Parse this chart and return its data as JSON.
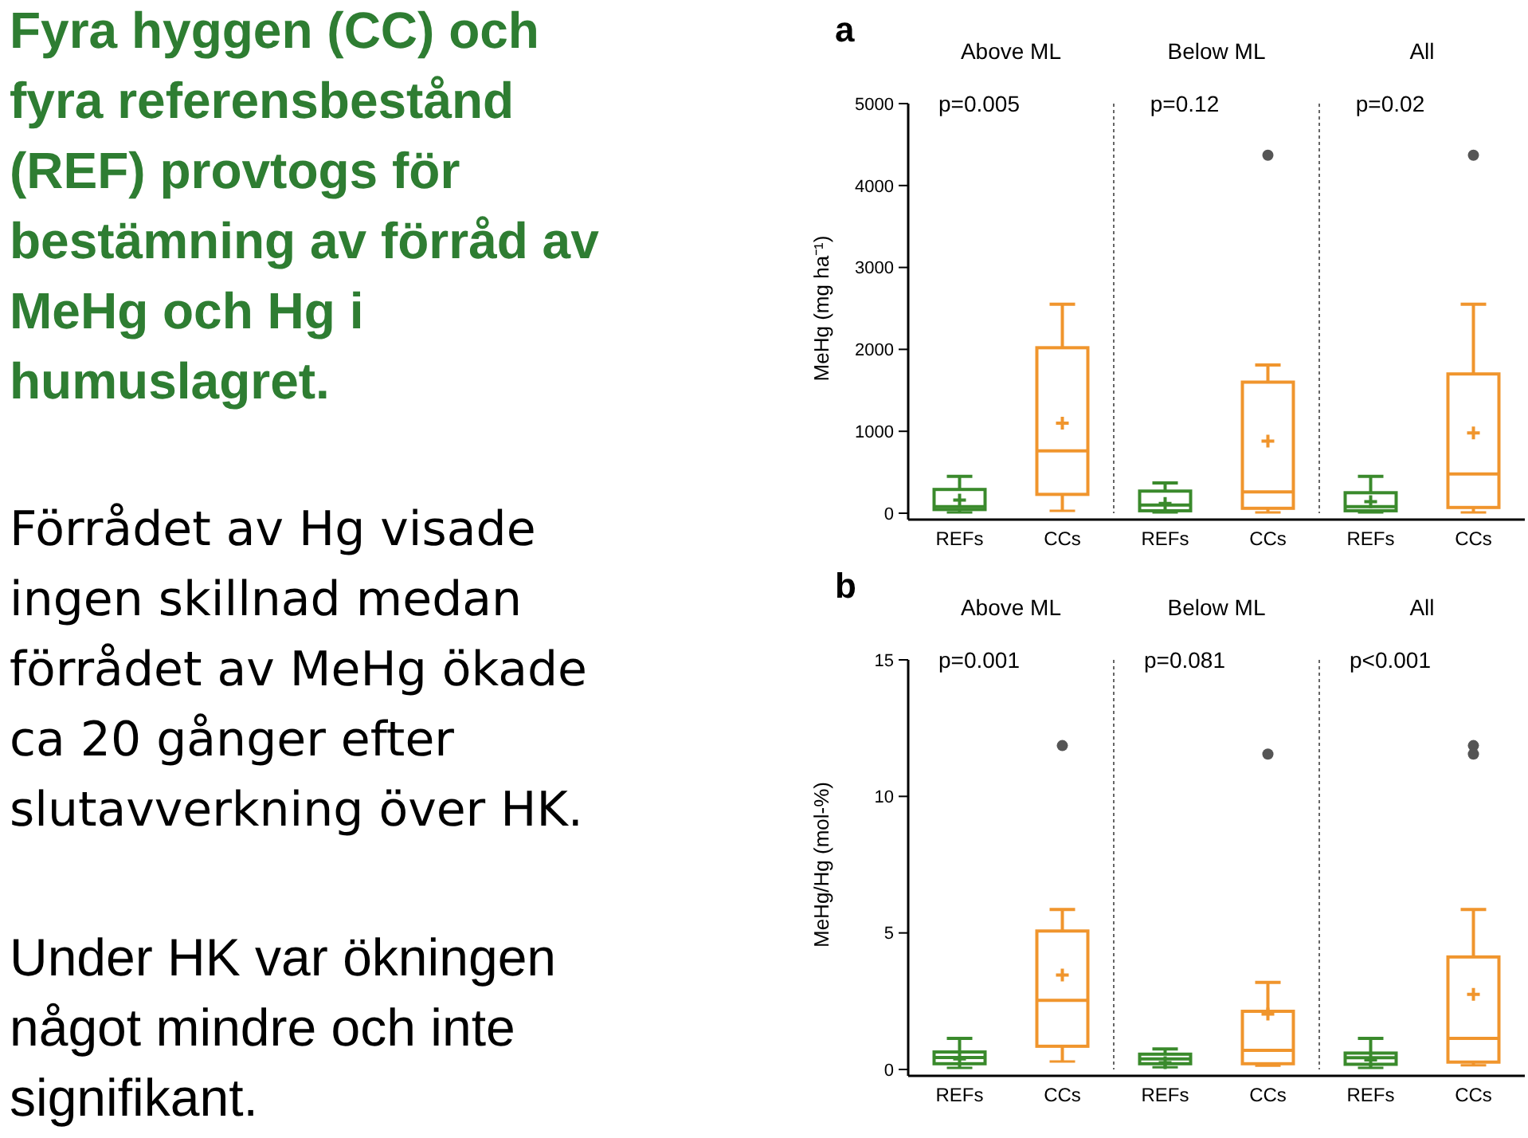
{
  "chart_data": [
    {
      "type": "box",
      "title": "a",
      "ylabel": "MeHg (mg ha⁻¹)",
      "categories": [
        "REFs",
        "CCs",
        "REFs",
        "CCs",
        "REFs",
        "CCs"
      ],
      "colors": [
        "#3a8a2c",
        "#f0952d",
        "#3a8a2c",
        "#f0952d",
        "#3a8a2c",
        "#f0952d"
      ],
      "boxes": [
        {
          "low": 10,
          "q1": 45,
          "median": 80,
          "q3": 290,
          "high": 450,
          "mean": 160
        },
        {
          "low": 30,
          "q1": 230,
          "median": 760,
          "q3": 2020,
          "high": 2550,
          "mean": 1100
        },
        {
          "low": 10,
          "q1": 30,
          "median": 100,
          "q3": 270,
          "high": 370,
          "mean": 120
        },
        {
          "low": 10,
          "q1": 60,
          "median": 260,
          "q3": 1600,
          "high": 1810,
          "mean": 880,
          "outliers": [
            4370
          ]
        },
        {
          "low": 10,
          "q1": 30,
          "median": 80,
          "q3": 250,
          "high": 450,
          "mean": 140
        },
        {
          "low": 10,
          "q1": 70,
          "median": 480,
          "q3": 1700,
          "high": 2550,
          "mean": 980,
          "outliers": [
            4370
          ]
        }
      ],
      "ylim": [
        0,
        5000
      ],
      "yticks": [
        0,
        1000,
        2000,
        3000,
        4000,
        5000
      ],
      "annotations": [
        "Above ML",
        "Below ML",
        "All",
        "p=0.005",
        "p=0.12",
        "p=0.02",
        "Fyra hyggen (CC) och fyra referensbestånd (REF) provtogs för bestämning av förråd av MeHg och Hg i humuslagret.",
        "Förrådet av Hg visade ingen skillnad medan förrådet av MeHg ökade ca 20 gånger efter slutavverkning över HK.",
        "Under HK var ökningen något mindre och inte signifikant."
      ]
    },
    {
      "type": "box",
      "title": "b",
      "ylabel": "MeHg/Hg (mol-%)",
      "categories": [
        "REFs",
        "CCs",
        "REFs",
        "CCs",
        "REFs",
        "CCs"
      ],
      "colors": [
        "#3a8a2c",
        "#f0952d",
        "#3a8a2c",
        "#f0952d",
        "#3a8a2c",
        "#f0952d"
      ],
      "boxes": [
        {
          "low": 0.06,
          "q1": 0.21,
          "median": 0.44,
          "q3": 0.64,
          "high": 1.14,
          "mean": 0.39
        },
        {
          "low": 0.29,
          "q1": 0.85,
          "median": 2.53,
          "q3": 5.07,
          "high": 5.86,
          "mean": 3.46,
          "outliers": [
            11.86
          ]
        },
        {
          "low": 0.08,
          "q1": 0.21,
          "median": 0.39,
          "q3": 0.56,
          "high": 0.75,
          "mean": 0.25
        },
        {
          "low": 0.14,
          "q1": 0.21,
          "median": 0.7,
          "q3": 2.13,
          "high": 3.19,
          "mean": 2.03,
          "outliers": [
            11.55
          ]
        },
        {
          "low": 0.06,
          "q1": 0.19,
          "median": 0.43,
          "q3": 0.6,
          "high": 1.14,
          "mean": 0.35
        },
        {
          "low": 0.15,
          "q1": 0.27,
          "median": 1.14,
          "q3": 4.12,
          "high": 5.86,
          "mean": 2.75,
          "outliers": [
            11.86,
            11.55
          ]
        }
      ],
      "ylim": [
        0,
        15
      ],
      "yticks": [
        0,
        5,
        10,
        15
      ],
      "annotations": [
        "Above ML",
        "Below ML",
        "All",
        "p=0.001",
        "p=0.081",
        "p<0.001"
      ]
    }
  ]
}
